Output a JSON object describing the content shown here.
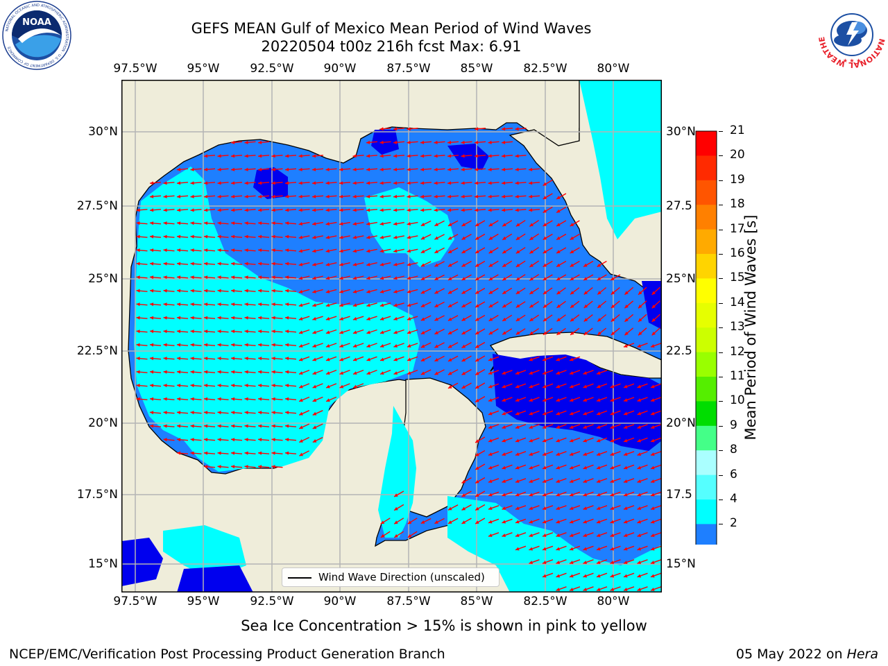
{
  "title": {
    "line1": "GEFS MEAN Gulf of Mexico Mean Period of Wind Waves",
    "line2": "20220504 t00z 216h fcst   Max: 6.91"
  },
  "map": {
    "lon_ticks": [
      "97.5°W",
      "95°W",
      "92.5°W",
      "90°W",
      "87.5°W",
      "85°W",
      "82.5°W",
      "80°W"
    ],
    "lat_ticks_left": [
      "30°N",
      "27.5°N",
      "25°N",
      "22.5°N",
      "20°N",
      "17.5°N",
      "15°N"
    ],
    "lat_ticks_right": [
      "30°N",
      "27.5",
      "25°N",
      "22.5",
      "20°N",
      "17.5",
      "15°N"
    ],
    "extent": {
      "lon_min": -98.0,
      "lon_max": -78.2,
      "lat_min": 14.0,
      "lat_max": 31.7
    },
    "colors": {
      "land": "#efedda",
      "level_2_4": "#1e7fff",
      "level_below_2": "#0000ee",
      "level_4_6": "#00ffff",
      "arrow": "#ff0000",
      "grid": "#b4b4b4"
    },
    "legend_label": "Wind Wave Direction (unscaled)"
  },
  "colorbar": {
    "label": "Mean Period of Wind Waves [s]",
    "ticks": [
      "21",
      "20",
      "19",
      "18",
      "17",
      "16",
      "15",
      "14",
      "13",
      "12",
      "11",
      "10",
      "9",
      "8",
      "6",
      "4",
      "2"
    ],
    "colors": [
      "#ff0000",
      "#ff2a00",
      "#ff5500",
      "#ff8000",
      "#ffaa00",
      "#ffd400",
      "#ffff00",
      "#e6ff00",
      "#ccff00",
      "#99ff00",
      "#55ee00",
      "#00dd00",
      "#44ff88",
      "#aaffff",
      "#55ffff",
      "#00ffff",
      "#1e7fff"
    ],
    "extend_color": "#0000ee"
  },
  "subtitle": "Sea Ice Concentration > 15% is shown in pink to yellow",
  "footer": {
    "left": "NCEP/EMC/Verification Post Processing Product Generation Branch",
    "right_prefix": "05 May 2022 on ",
    "right_italic": "Hera"
  },
  "logos": {
    "noaa_text": "NOAA",
    "noaa_ring": "NATIONAL OCEANIC AND ATMOSPHERIC ADMINISTRATION · U.S. DEPARTMENT OF COMMERCE",
    "nws_ring": "NATIONAL WEATHER SERVICE"
  }
}
